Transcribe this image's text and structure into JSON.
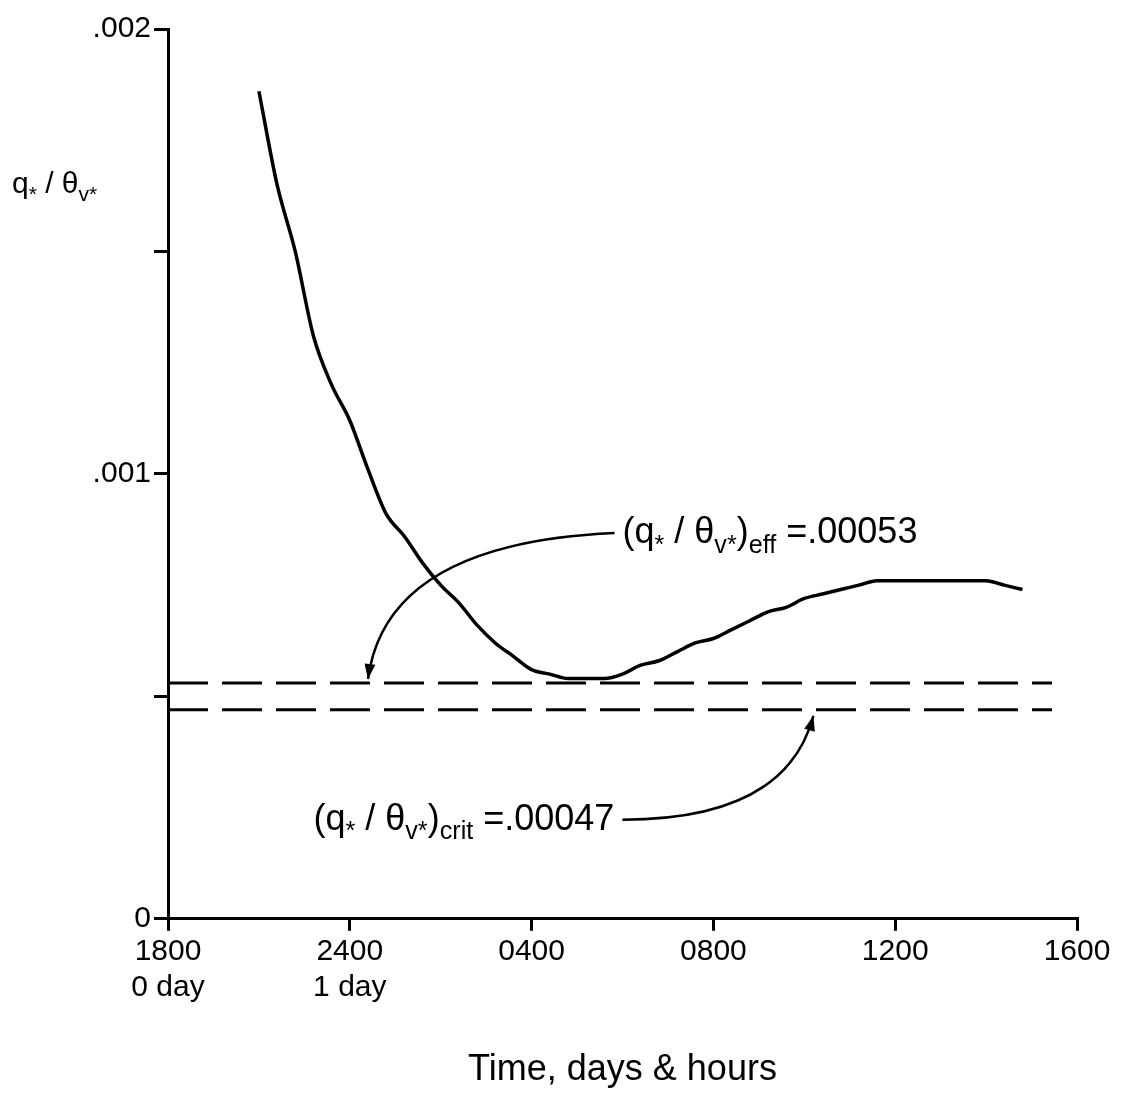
{
  "chart_data": {
    "type": "line",
    "xlabel": "Time, days & hours",
    "ylabel": "q$_{*}$ / θ$_{v*}$",
    "categories": [
      "1800\n0 day",
      null,
      null,
      null,
      null,
      null,
      null,
      null,
      null,
      null,
      "2400\n1 day",
      null,
      null,
      null,
      null,
      null,
      null,
      null,
      null,
      null,
      "0400",
      null,
      null,
      null,
      null,
      null,
      null,
      null,
      null,
      null,
      "0800",
      null,
      null,
      null,
      null,
      null,
      null,
      null,
      null,
      null,
      "1200",
      null,
      null,
      null,
      null,
      null,
      null,
      null,
      null,
      null,
      "1600"
    ],
    "series": [
      {
        "color": "#000000",
        "values": [
          null,
          null,
          null,
          null,
          null,
          0.00186,
          0.00165,
          0.0015,
          0.00131,
          0.0012,
          0.00112,
          0.00101,
          0.00091,
          0.00086,
          0.0008,
          0.00075,
          0.00071,
          0.00066,
          0.00062,
          0.00059,
          0.00056,
          0.00055,
          0.00054,
          0.00054,
          0.00054,
          0.00055,
          0.00057,
          0.00058,
          0.0006,
          0.00062,
          0.00063,
          0.00065,
          0.00067,
          0.00069,
          0.0007,
          0.00072,
          0.00073,
          0.00074,
          0.00075,
          0.00076,
          0.00076,
          0.00076,
          0.00076,
          0.00076,
          0.00076,
          0.00076,
          0.00075,
          0.00074,
          null,
          null,
          null
        ]
      }
    ],
    "ylim": [
      0,
      0.002
    ],
    "yticks": [
      0,
      {
        "value": 0.0005,
        "label": null
      },
      {
        "value": 0.001,
        "label": ".001"
      },
      {
        "value": 0.0015,
        "label": null
      },
      {
        "value": 0.002,
        "label": ".002"
      }
    ],
    "ref_lines": [
      {
        "axis": "y",
        "value": 0.00053,
        "label": "(q$_{*}$ / θ$_{v*}$)$_{eff}$ =.00053",
        "line_style": "dashed",
        "color": "#000000"
      },
      {
        "axis": "y",
        "value": 0.00047,
        "label": "(q$_{*}$ / θ$_{v*}$)$_{crit}$ =.00047",
        "line_style": "dashed",
        "color": "#000000"
      }
    ],
    "grid": false,
    "legend": false,
    "marker": "none",
    "line_style": "solid"
  }
}
